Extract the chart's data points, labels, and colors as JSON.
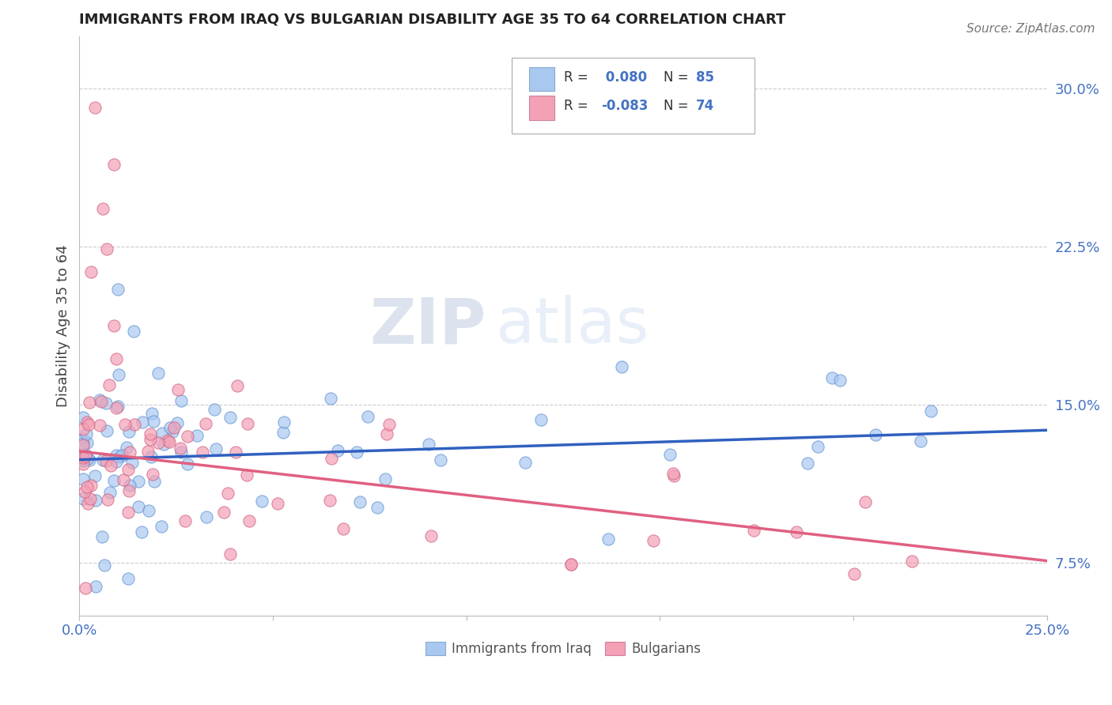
{
  "title": "IMMIGRANTS FROM IRAQ VS BULGARIAN DISABILITY AGE 35 TO 64 CORRELATION CHART",
  "source": "Source: ZipAtlas.com",
  "ylabel": "Disability Age 35 to 64",
  "xlim": [
    0.0,
    0.25
  ],
  "ylim": [
    0.05,
    0.325
  ],
  "yticks": [
    0.075,
    0.15,
    0.225,
    0.3
  ],
  "yticklabels": [
    "7.5%",
    "15.0%",
    "22.5%",
    "30.0%"
  ],
  "xtick_left_label": "0.0%",
  "xtick_right_label": "25.0%",
  "legend_r1_label": "R = ",
  "legend_r1_val": " 0.080",
  "legend_n1_label": "N = ",
  "legend_n1_val": "85",
  "legend_r2_label": "R = ",
  "legend_r2_val": "-0.083",
  "legend_n2_label": "N = ",
  "legend_n2_val": "74",
  "color_iraq": "#A8C8F0",
  "color_bulgarian": "#F4A0B5",
  "color_iraq_line": "#3060C0",
  "color_bulgarian_line": "#E06080",
  "color_tick": "#4472C4",
  "watermark_zip": "ZIP",
  "watermark_atlas": "atlas",
  "bottom_label_iraq": "Immigrants from Iraq",
  "bottom_label_bulg": "Bulgarians",
  "iraq_line_x0": 0.0,
  "iraq_line_y0": 0.124,
  "iraq_line_x1": 0.25,
  "iraq_line_y1": 0.138,
  "bulg_line_x0": 0.0,
  "bulg_line_y0": 0.128,
  "bulg_line_x1": 0.25,
  "bulg_line_y1": 0.076
}
